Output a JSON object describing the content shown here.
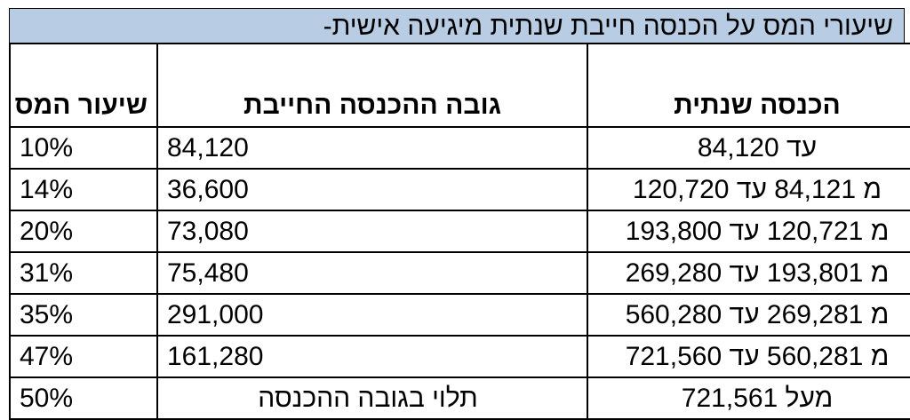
{
  "title": "שיעורי המס על הכנסה חייבת שנתית מיגיעה אישית-",
  "headers": {
    "income": "הכנסה שנתית",
    "amount": "גובה ההכנסה החייבת",
    "rate": "שיעור המס"
  },
  "rows": [
    {
      "income": "עד 84,120",
      "amount": "84,120",
      "rate": "10%"
    },
    {
      "income": "מ 84,121 עד 120,720",
      "amount": "36,600",
      "rate": "14%"
    },
    {
      "income": "מ 120,721 עד 193,800",
      "amount": "73,080",
      "rate": "20%"
    },
    {
      "income": "מ 193,801 עד 269,280",
      "amount": "75,480",
      "rate": "31%"
    },
    {
      "income": "מ 269,281 עד 560,280",
      "amount": "291,000",
      "rate": "35%"
    },
    {
      "income": "מ 560,281 עד 721,560",
      "amount": "161,280",
      "rate": "47%"
    },
    {
      "income": "מעל 721,561",
      "amount": "תלוי בגובה ההכנסה",
      "rate": "50%"
    }
  ],
  "colors": {
    "title_bg": "#b8cde4",
    "border": "#000000"
  }
}
